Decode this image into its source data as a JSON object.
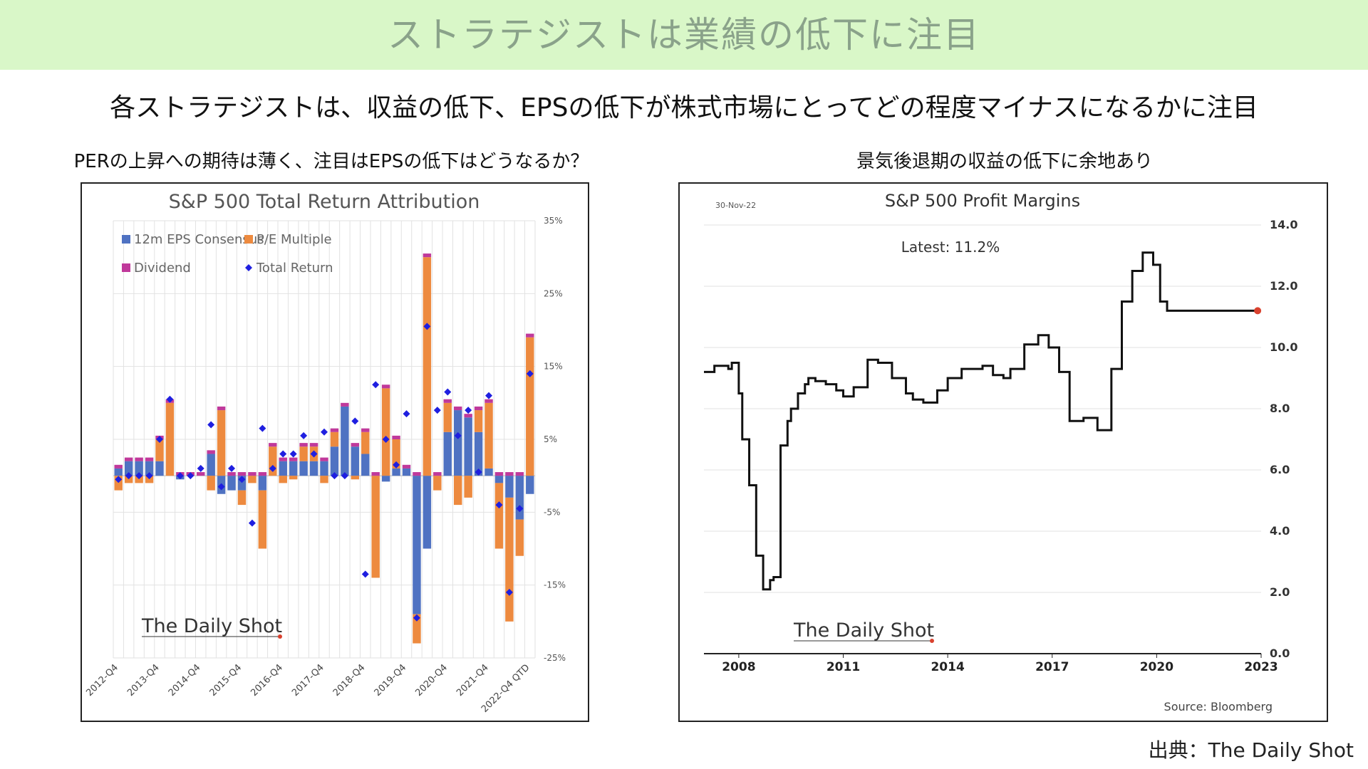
{
  "header": {
    "title": "ストラテジストは業績の低下に注目"
  },
  "subtitle": "各ストラテジストは、収益の低下、EPSの低下が株式市場にとってどの程度マイナスになるかに注目",
  "left_caption": "PERの上昇への期待は薄く、注目はEPSの低下はどうなるか？",
  "right_caption": "景気後退期の収益の低下に余地あり",
  "footer_source": "出典：The Daily Shot",
  "colors": {
    "eps": "#4f72c2",
    "pe": "#ed8a3f",
    "dividend": "#c0399b",
    "total_return": "#1f1fe0",
    "banner": "#d9f7c8"
  },
  "chart_data": [
    {
      "type": "bar",
      "title": "S&P 500 Total Return Attribution",
      "watermark": "The Daily Shot",
      "legend": [
        "12m EPS Consensus",
        "P/E Multiple",
        "Dividend",
        "Total Return"
      ],
      "legend_position": "top-left",
      "grid": true,
      "ylim": [
        -25,
        35
      ],
      "yticks": [
        "35%",
        "25%",
        "15%",
        "5%",
        "-5%",
        "-15%",
        "-25%"
      ],
      "ytick_values": [
        35,
        25,
        15,
        5,
        -5,
        -15,
        -25
      ],
      "xtick_labels": [
        "2012-Q4",
        "2013-Q4",
        "2014-Q4",
        "2015-Q4",
        "2016-Q4",
        "2017-Q4",
        "2018-Q4",
        "2019-Q4",
        "2020-Q4",
        "2021-Q4",
        "2022-Q4 QTD"
      ],
      "categories": [
        "2012-Q4",
        "2013-Q1",
        "2013-Q2",
        "2013-Q3",
        "2013-Q4",
        "2014-Q1",
        "2014-Q2",
        "2014-Q3",
        "2014-Q4",
        "2015-Q1",
        "2015-Q2",
        "2015-Q3",
        "2015-Q4",
        "2016-Q1",
        "2016-Q2",
        "2016-Q3",
        "2016-Q4",
        "2017-Q1",
        "2017-Q2",
        "2017-Q3",
        "2017-Q4",
        "2018-Q1",
        "2018-Q2",
        "2018-Q3",
        "2018-Q4",
        "2019-Q1",
        "2019-Q2",
        "2019-Q3",
        "2019-Q4",
        "2020-Q1",
        "2020-Q2",
        "2020-Q3",
        "2020-Q4",
        "2021-Q1",
        "2021-Q2",
        "2021-Q3",
        "2021-Q4",
        "2022-Q1",
        "2022-Q2",
        "2022-Q3",
        "2022-Q4 QTD"
      ],
      "series": [
        {
          "name": "12m EPS Consensus",
          "values": [
            1,
            2,
            2,
            2,
            2,
            0,
            -0.5,
            0,
            0,
            3,
            -2.5,
            -2,
            -2,
            0,
            -2,
            0,
            2,
            2,
            2,
            2,
            2,
            4,
            9.5,
            4,
            3,
            0,
            -0.8,
            1,
            1,
            -19,
            -10,
            0,
            6,
            9,
            8,
            6,
            1,
            -1,
            -3,
            -6,
            -2.5
          ]
        },
        {
          "name": "P/E Multiple",
          "values": [
            -2,
            -1,
            -1,
            -1,
            3,
            10,
            0,
            0,
            0,
            -2,
            9,
            0,
            -2,
            -1,
            -8,
            4,
            -1,
            -0.5,
            2,
            2,
            -1,
            2,
            0,
            -0.5,
            3,
            -14,
            12,
            4,
            0,
            -4,
            30,
            -2,
            4,
            -4,
            -3,
            3,
            9,
            -9,
            -17,
            -5,
            19
          ]
        },
        {
          "name": "Dividend",
          "values": [
            0.5,
            0.5,
            0.5,
            0.5,
            0.5,
            0.5,
            0.5,
            0.5,
            0.5,
            0.5,
            0.5,
            0.5,
            0.5,
            0.5,
            0.5,
            0.5,
            0.5,
            0.5,
            0.5,
            0.5,
            0.5,
            0.5,
            0.5,
            0.5,
            0.5,
            0.5,
            0.5,
            0.5,
            0.5,
            0.5,
            0.5,
            0.5,
            0.5,
            0.5,
            0.5,
            0.5,
            0.5,
            0.5,
            0.5,
            0.5,
            0.5
          ]
        },
        {
          "name": "Total Return",
          "values": [
            -0.5,
            0,
            0,
            0,
            5,
            10.5,
            0,
            0,
            1,
            7,
            -1.5,
            1,
            -0.5,
            -6.5,
            6.5,
            1,
            3,
            3,
            5.5,
            3,
            6,
            0,
            0,
            7.5,
            -13.5,
            12.5,
            5,
            1.5,
            8.5,
            -19.5,
            20.5,
            9,
            11.5,
            5.5,
            9,
            0.5,
            11,
            -4,
            -16,
            -4.5,
            14
          ]
        }
      ]
    },
    {
      "type": "line",
      "title": "S&P 500 Profit Margins",
      "date_label": "30-Nov-22",
      "annotation": "Latest:  11.2%",
      "source": "Source: Bloomberg",
      "watermark": "The Daily Shot",
      "grid": true,
      "ylim": [
        0,
        14
      ],
      "yticks": [
        "0.0",
        "2.0",
        "4.0",
        "6.0",
        "8.0",
        "10.0",
        "12.0",
        "14.0"
      ],
      "ytick_values": [
        0,
        2,
        4,
        6,
        8,
        10,
        12,
        14
      ],
      "xlim": [
        2007,
        2023
      ],
      "xticks": [
        "2008",
        "2011",
        "2014",
        "2017",
        "2020",
        "2023"
      ],
      "xtick_values": [
        2008,
        2011,
        2014,
        2017,
        2020,
        2023
      ],
      "x": [
        2007.0,
        2007.3,
        2007.7,
        2007.8,
        2008.0,
        2008.1,
        2008.3,
        2008.5,
        2008.7,
        2008.9,
        2009.0,
        2009.2,
        2009.4,
        2009.5,
        2009.7,
        2009.9,
        2010.0,
        2010.2,
        2010.5,
        2010.8,
        2011.0,
        2011.3,
        2011.7,
        2012.0,
        2012.4,
        2012.8,
        2013.0,
        2013.3,
        2013.7,
        2014.0,
        2014.4,
        2014.8,
        2015.0,
        2015.3,
        2015.6,
        2015.8,
        2016.2,
        2016.6,
        2016.9,
        2017.2,
        2017.5,
        2017.9,
        2018.3,
        2018.7,
        2019.0,
        2019.3,
        2019.6,
        2019.9,
        2020.1,
        2020.3,
        2020.6,
        2020.8,
        2020.9,
        2021.0,
        2021.2,
        2021.4,
        2021.7,
        2021.9,
        2022.1,
        2022.3,
        2022.5,
        2022.7,
        2022.9
      ],
      "values": [
        9.2,
        9.4,
        9.3,
        9.5,
        8.5,
        7.0,
        5.5,
        3.2,
        2.1,
        2.4,
        2.5,
        6.8,
        7.6,
        8.0,
        8.5,
        8.8,
        9.0,
        8.9,
        8.8,
        8.6,
        8.4,
        8.7,
        9.6,
        9.5,
        9.0,
        8.5,
        8.3,
        8.2,
        8.6,
        9.0,
        9.3,
        9.3,
        9.4,
        9.1,
        9.0,
        9.3,
        10.1,
        10.4,
        10.0,
        9.2,
        7.6,
        7.7,
        7.3,
        9.3,
        11.5,
        12.5,
        13.1,
        12.7,
        11.5,
        11.2,
        11.2,
        11.2,
        11.2,
        11.2,
        11.2,
        11.2,
        11.2,
        11.2,
        11.2,
        11.2,
        11.2,
        11.2,
        11.2
      ]
    }
  ]
}
